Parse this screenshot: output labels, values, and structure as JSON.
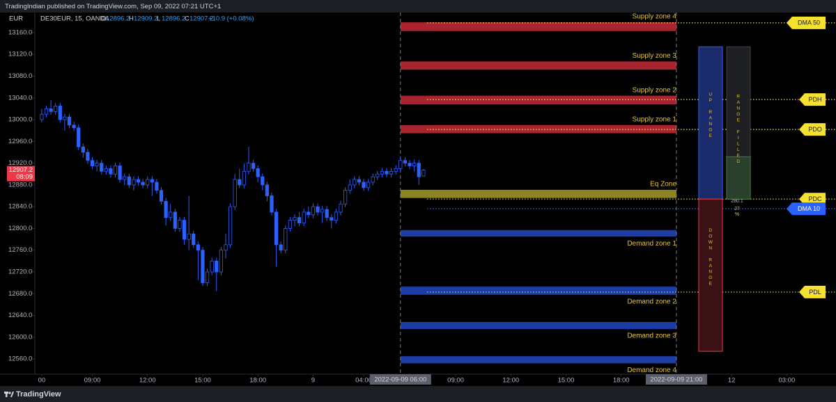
{
  "header": {
    "publisher": "TradingIndian published on TradingView.com, Sep 09, 2022 07:21 UTC+1"
  },
  "footer": {
    "brand": "TradingView"
  },
  "chart_data": {
    "type": "candlestick",
    "currency": "EUR",
    "symbol": "DE30EUR, 15, OANDA",
    "ohlc_legend": [
      {
        "label": "O",
        "value": 12896.2
      },
      {
        "label": "H",
        "value": 12909.2
      },
      {
        "label": "L",
        "value": 12896.2
      },
      {
        "label": "C",
        "value": 12907.2
      }
    ],
    "change": "+10.9 (+0.08%)",
    "up_color": "#2962ff",
    "down_color": "#2962ff",
    "ylim": [
      12532,
      13197
    ],
    "yticks": [
      {
        "value": 13160,
        "label": "13160.0"
      },
      {
        "value": 13120,
        "label": "13120.0"
      },
      {
        "value": 13080,
        "label": "13080.0"
      },
      {
        "value": 13040,
        "label": "13040.0"
      },
      {
        "value": 13000,
        "label": "13000.0"
      },
      {
        "value": 12960,
        "label": "12960.0"
      },
      {
        "value": 12920,
        "label": "12920.0"
      },
      {
        "value": 12880,
        "label": "12880.0"
      },
      {
        "value": 12840,
        "label": "12840.0"
      },
      {
        "value": 12800,
        "label": "12800.0"
      },
      {
        "value": 12760,
        "label": "12760.0"
      },
      {
        "value": 12720,
        "label": "12720.0"
      },
      {
        "value": 12680,
        "label": "12680.0"
      },
      {
        "value": 12640,
        "label": "12640.0"
      },
      {
        "value": 12600,
        "label": "12600.0"
      },
      {
        "value": 12560,
        "label": "12560.0"
      }
    ],
    "xlim": [
      -1.5,
      172.7
    ],
    "xticks": [
      {
        "value": 0,
        "label": "00"
      },
      {
        "value": 11,
        "label": "09:00"
      },
      {
        "value": 23,
        "label": "12:00"
      },
      {
        "value": 35,
        "label": "15:00"
      },
      {
        "value": 47,
        "label": "18:00"
      },
      {
        "value": 59,
        "label": "9"
      },
      {
        "value": 70,
        "label": "04:00"
      },
      {
        "value": 90,
        "label": "09:00"
      },
      {
        "value": 102,
        "label": "12:00"
      },
      {
        "value": 114,
        "label": "15:00"
      },
      {
        "value": 126,
        "label": "18:00"
      },
      {
        "value": 150,
        "label": "12"
      },
      {
        "value": 162,
        "label": "03:00"
      }
    ],
    "crosshair_lines": [
      {
        "x": 78,
        "label": "2022-09-09 06:00"
      },
      {
        "x": 138,
        "label": "2022-09-09 21:00"
      }
    ],
    "open": [
      13000,
      13010,
      13020,
      13015,
      13025,
      13000,
      13005,
      12990,
      12985,
      12950,
      12940,
      12925,
      12915,
      12920,
      12905,
      12910,
      12900,
      12915,
      12890,
      12895,
      12880,
      12890,
      12885,
      12880,
      12890,
      12885,
      12870,
      12850,
      12820,
      12830,
      12800,
      12815,
      12780,
      12790,
      12770,
      12760,
      12700,
      12720,
      12740,
      12720,
      12760,
      12770,
      12840,
      12890,
      12880,
      12905,
      12920,
      12910,
      12895,
      12880,
      12860,
      12830,
      12770,
      12760,
      12800,
      12815,
      12820,
      12810,
      12830,
      12825,
      12840,
      12830,
      12835,
      12820,
      12815,
      12830,
      12845,
      12870,
      12880,
      12890,
      12885,
      12875,
      12885,
      12895,
      12900,
      12905,
      12900,
      12905,
      12910,
      12925,
      12920,
      12915,
      12920,
      12896.2
    ],
    "high": [
      13020,
      13026,
      13036,
      13031,
      13031,
      13011,
      13011,
      12996,
      12991,
      12956,
      12946,
      12931,
      12926,
      12926,
      12916,
      12916,
      12921,
      12921,
      12901,
      12901,
      12896,
      12896,
      12891,
      12896,
      12896,
      12891,
      12876,
      12856,
      12845,
      12836,
      12821,
      12821,
      12860,
      12796,
      12776,
      12766,
      12726,
      12746,
      12746,
      12766,
      12790,
      12846,
      12900,
      12910,
      12920,
      12950,
      12926,
      12916,
      12901,
      12886,
      12866,
      12836,
      12776,
      12806,
      12821,
      12826,
      12830,
      12836,
      12840,
      12846,
      12846,
      12841,
      12841,
      12826,
      12836,
      12851,
      12876,
      12890,
      12896,
      12896,
      12891,
      12891,
      12901,
      12906,
      12911,
      12911,
      12911,
      12916,
      12932,
      12931,
      12926,
      12926,
      12926,
      12909.2
    ],
    "low": [
      12995,
      13004,
      13009,
      13009,
      12994,
      12980,
      12984,
      12979,
      12944,
      12930,
      12919,
      12909,
      12905,
      12899,
      12899,
      12894,
      12894,
      12884,
      12880,
      12874,
      12870,
      12879,
      12874,
      12874,
      12860,
      12864,
      12844,
      12805,
      12814,
      12794,
      12794,
      12770,
      12760,
      12764,
      12705,
      12694,
      12694,
      12714,
      12685,
      12714,
      12745,
      12764,
      12834,
      12874,
      12874,
      12899,
      12904,
      12885,
      12870,
      12850,
      12824,
      12730,
      12754,
      12754,
      12794,
      12804,
      12804,
      12804,
      12819,
      12819,
      12824,
      12810,
      12814,
      12800,
      12809,
      12824,
      12839,
      12864,
      12874,
      12879,
      12869,
      12869,
      12879,
      12889,
      12894,
      12894,
      12894,
      12899,
      12904,
      12914,
      12909,
      12905,
      12880,
      12896.2
    ],
    "close": [
      13010,
      13020,
      13015,
      13025,
      13000,
      13005,
      12990,
      12985,
      12950,
      12940,
      12925,
      12915,
      12920,
      12905,
      12910,
      12900,
      12915,
      12890,
      12895,
      12880,
      12890,
      12885,
      12880,
      12890,
      12885,
      12870,
      12850,
      12820,
      12830,
      12800,
      12815,
      12780,
      12790,
      12770,
      12760,
      12700,
      12720,
      12740,
      12720,
      12760,
      12770,
      12840,
      12890,
      12880,
      12905,
      12920,
      12910,
      12895,
      12880,
      12860,
      12830,
      12770,
      12760,
      12800,
      12815,
      12820,
      12810,
      12830,
      12825,
      12840,
      12830,
      12835,
      12820,
      12815,
      12830,
      12845,
      12870,
      12880,
      12890,
      12885,
      12875,
      12885,
      12895,
      12900,
      12905,
      12900,
      12905,
      12910,
      12925,
      12920,
      12915,
      12920,
      12895,
      12907.2
    ],
    "last_price": {
      "value": 12907.2,
      "countdown": "08:09",
      "color": "#f23645"
    },
    "zones": {
      "supply": [
        {
          "name": "Supply zone 4",
          "top": 13179,
          "bottom": 13163,
          "color": "#a8242f"
        },
        {
          "name": "Supply zone 3",
          "top": 13107,
          "bottom": 13092,
          "color": "#a8242f"
        },
        {
          "name": "Supply zone 2",
          "top": 13044,
          "bottom": 13028,
          "color": "#a8242f"
        },
        {
          "name": "Supply zone 1",
          "top": 12990,
          "bottom": 12975,
          "color": "#a8242f"
        }
      ],
      "equilibrium": [
        {
          "name": "Eq Zone",
          "top": 12871,
          "bottom": 12856,
          "color": "#8c8420"
        }
      ],
      "demand": [
        {
          "name": "Demand zone 1",
          "top": 12797,
          "bottom": 12785,
          "color": "#1d3da6"
        },
        {
          "name": "Demand zone 2",
          "top": 12693,
          "bottom": 12678,
          "color": "#1d3da6"
        },
        {
          "name": "Demand zone 3",
          "top": 12628,
          "bottom": 12615,
          "color": "#1d3da6"
        },
        {
          "name": "Demand zone 4",
          "top": 12565,
          "bottom": 12552,
          "color": "#1d3da6"
        }
      ]
    },
    "zone_label_color": "#e5c73a",
    "levels": [
      {
        "name": "DMA 50",
        "value": 13178,
        "color": "#f5e130",
        "text_color": "#131722"
      },
      {
        "name": "PDH",
        "value": 13037,
        "color": "#f5e130",
        "text_color": "#131722"
      },
      {
        "name": "PDO",
        "value": 12982,
        "color": "#f5e130",
        "text_color": "#131722"
      },
      {
        "name": "PDC",
        "value": 12854,
        "color": "#f5e130",
        "text_color": "#131722"
      },
      {
        "name": "PDL",
        "value": 12683,
        "color": "#f5e130",
        "text_color": "#131722"
      },
      {
        "name": "DMA 10",
        "value": 12836,
        "color": "#2962ff",
        "text_color": "#ffffff"
      }
    ],
    "ranges": {
      "up": {
        "label": "UP RANGE",
        "top": 13134,
        "bottom": 12854,
        "color": "#1b2a6b",
        "border": "#2962ff"
      },
      "down": {
        "label": "DOWN RANGE",
        "top": 12854,
        "bottom": 12574,
        "color": "#3a1114",
        "border": "#f23645"
      },
      "filled": {
        "label": "RANGE FILLED",
        "top": 13134,
        "bottom": 12854,
        "filled_top": 12932,
        "color": "#1e1f22",
        "fill_color": "#2a3f2c",
        "points": 280.1,
        "percent": 27,
        "percent_unit": "%"
      }
    }
  }
}
